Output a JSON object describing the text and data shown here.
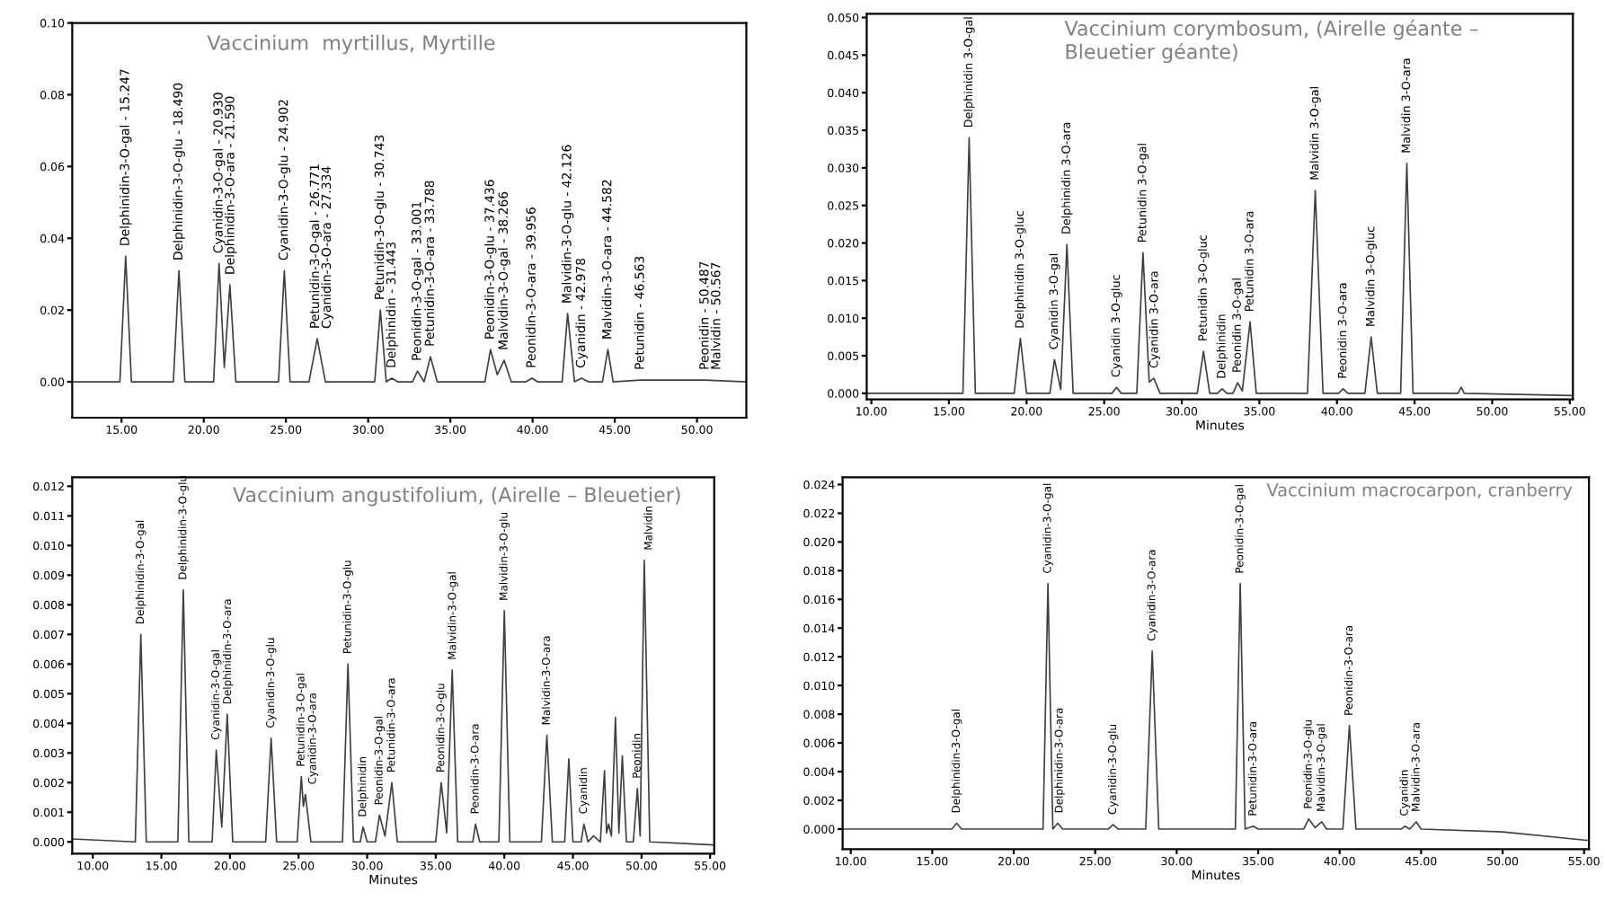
{
  "chart_data": [
    {
      "type": "line",
      "title": "Vaccinium  myrtillus, Myrtille",
      "color": "#404040",
      "x": [
        12,
        14.9,
        15.25,
        15.6,
        18.15,
        18.49,
        18.85,
        20.6,
        20.93,
        21.25,
        21.59,
        21.95,
        24.55,
        24.9,
        25.25,
        26.4,
        26.9,
        27.4,
        30.4,
        30.74,
        31.1,
        31.44,
        31.8,
        32.7,
        33.0,
        33.4,
        33.79,
        34.2,
        37.1,
        37.44,
        37.85,
        38.27,
        38.7,
        39.6,
        39.96,
        40.3,
        41.8,
        42.13,
        42.55,
        42.98,
        43.4,
        44.25,
        44.58,
        44.9,
        46.56,
        50.49,
        53
      ],
      "values": [
        0,
        0,
        0.035,
        0,
        0,
        0.031,
        0,
        0,
        0.033,
        0.004,
        0.027,
        0,
        0,
        0.031,
        0,
        0,
        0.012,
        0,
        0,
        0.02,
        0,
        0.001,
        0,
        0,
        0.003,
        0,
        0.007,
        0,
        0,
        0.009,
        0.002,
        0.006,
        0,
        0,
        0.001,
        0,
        0,
        0.019,
        0,
        0.001,
        0,
        0,
        0.009,
        0,
        0.0005,
        0.0005,
        0
      ],
      "xlim": [
        12,
        53
      ],
      "ylim": [
        -0.01,
        0.1
      ],
      "xticks": [
        {
          "value": 15,
          "label": "15.00"
        },
        {
          "value": 20,
          "label": "20.00"
        },
        {
          "value": 25,
          "label": "25.00"
        },
        {
          "value": 30,
          "label": "30.00"
        },
        {
          "value": 35,
          "label": "35.00"
        },
        {
          "value": 40,
          "label": "40.00"
        },
        {
          "value": 45,
          "label": "45.00"
        },
        {
          "value": 50,
          "label": "50.00"
        }
      ],
      "yticks": [
        {
          "value": 0,
          "label": "0.00"
        },
        {
          "value": 0.02,
          "label": "0.02"
        },
        {
          "value": 0.04,
          "label": "0.04"
        },
        {
          "value": 0.06,
          "label": "0.06"
        },
        {
          "value": 0.08,
          "label": "0.08"
        },
        {
          "value": 0.1,
          "label": "0.10"
        }
      ],
      "annotations": [
        {
          "text": "Delphinidin-3-O-gal - 15.247",
          "x": 15.25,
          "y": 0.035
        },
        {
          "text": "Delphinidin-3-O-glu - 18.490",
          "x": 18.49,
          "y": 0.031
        },
        {
          "text": "Cyanidin-3-O-gal - 20.930",
          "x": 20.93,
          "y": 0.033
        },
        {
          "text": "Delphinidin-3-O-ara - 21.590",
          "x": 21.59,
          "y": 0.027
        },
        {
          "text": "Cyanidin-3-O-glu - 24.902",
          "x": 24.9,
          "y": 0.031
        },
        {
          "text": "Petunidin-3-O-gal - 26.771",
          "x": 26.8,
          "y": 0.012
        },
        {
          "text": "Cyanidin-3-O-ara - 27.334",
          "x": 27.33,
          "y": 0.012
        },
        {
          "text": "Petunidin-3-O-glu - 30.743",
          "x": 30.74,
          "y": 0.02
        },
        {
          "text": "Delphinidin - 31.443",
          "x": 31.44,
          "y": 0.001
        },
        {
          "text": "Peonidin-3-O-gal - 33.001",
          "x": 33.0,
          "y": 0.003
        },
        {
          "text": "Petunidin-3-O-ara - 33.788",
          "x": 33.79,
          "y": 0.007
        },
        {
          "text": "Peonidin-3-O-glu - 37.436",
          "x": 37.44,
          "y": 0.009
        },
        {
          "text": "Malvidin-3-O-gal - 38.266",
          "x": 38.27,
          "y": 0.006
        },
        {
          "text": "Peonidin-3-O-ara - 39.956",
          "x": 39.96,
          "y": 0.001
        },
        {
          "text": "Malvidin-3-O-glu - 42.126",
          "x": 42.13,
          "y": 0.019
        },
        {
          "text": "Cyanidin - 42.978",
          "x": 42.98,
          "y": 0.001
        },
        {
          "text": "Malvidin-3-O-ara - 44.582",
          "x": 44.58,
          "y": 0.009
        },
        {
          "text": "Petunidin - 46.563",
          "x": 46.56,
          "y": 0.0005
        },
        {
          "text": "Peonidin - 50.487",
          "x": 50.49,
          "y": 0.0005
        },
        {
          "text": "Malvidin - 50.567",
          "x": 50.57,
          "y": 0.0005
        }
      ]
    },
    {
      "type": "line",
      "title": "Vaccinium corymbosum, (Airelle géante –\nBleuetier géante)",
      "xlabel": "Minutes",
      "color": "#404040",
      "x": [
        9.7,
        15.9,
        16.3,
        16.7,
        19.2,
        19.6,
        20.0,
        21.5,
        21.8,
        22.2,
        22.6,
        23.0,
        25.5,
        25.8,
        26.1,
        27.1,
        27.5,
        27.9,
        28.2,
        28.6,
        31.0,
        31.4,
        31.8,
        32.3,
        32.6,
        32.9,
        33.3,
        33.6,
        33.9,
        34.4,
        34.8,
        38.1,
        38.6,
        39.1,
        40.1,
        40.4,
        40.7,
        41.8,
        42.2,
        42.6,
        44.1,
        44.5,
        44.9,
        47.8,
        48.0,
        48.2,
        55.2
      ],
      "values": [
        0,
        0,
        0.034,
        0,
        0,
        0.0073,
        0,
        0,
        0.0045,
        0.0005,
        0.0198,
        0,
        0,
        0.0008,
        0,
        0,
        0.0187,
        0.0015,
        0.002,
        0,
        0,
        0.0056,
        0,
        0,
        0.0006,
        0,
        0,
        0.0014,
        0.0003,
        0.0095,
        0,
        0,
        0.027,
        0,
        0,
        0.0006,
        0,
        0,
        0.0075,
        0,
        0,
        0.0306,
        0,
        0,
        0.0008,
        0,
        -0.0003
      ],
      "xlim": [
        9.7,
        55.2
      ],
      "ylim": [
        -0.0008,
        0.0505
      ],
      "xticks": [
        {
          "value": 10,
          "label": "10.00"
        },
        {
          "value": 15,
          "label": "15.00"
        },
        {
          "value": 20,
          "label": "20.00"
        },
        {
          "value": 25,
          "label": "25.00"
        },
        {
          "value": 30,
          "label": "30.00"
        },
        {
          "value": 35,
          "label": "35.00"
        },
        {
          "value": 40,
          "label": "40.00"
        },
        {
          "value": 45,
          "label": "45.00"
        },
        {
          "value": 50,
          "label": "50.00"
        },
        {
          "value": 55,
          "label": "55.00"
        }
      ],
      "yticks": [
        {
          "value": 0,
          "label": "0.000"
        },
        {
          "value": 0.005,
          "label": "0.005"
        },
        {
          "value": 0.01,
          "label": "0.010"
        },
        {
          "value": 0.015,
          "label": "0.015"
        },
        {
          "value": 0.02,
          "label": "0.020"
        },
        {
          "value": 0.025,
          "label": "0.025"
        },
        {
          "value": 0.03,
          "label": "0.030"
        },
        {
          "value": 0.035,
          "label": "0.035"
        },
        {
          "value": 0.04,
          "label": "0.040"
        },
        {
          "value": 0.045,
          "label": "0.045"
        },
        {
          "value": 0.05,
          "label": "0.050"
        }
      ],
      "annotations": [
        {
          "text": "Delphinidin 3-O-gal",
          "x": 16.3,
          "y": 0.034
        },
        {
          "text": "Delphinidin 3-O-gluc",
          "x": 19.6,
          "y": 0.0073
        },
        {
          "text": "Cyanidin 3-O-gal",
          "x": 21.8,
          "y": 0.0045
        },
        {
          "text": "Delphinidin 3-O-ara",
          "x": 22.6,
          "y": 0.0198
        },
        {
          "text": "Cyanidin 3-O-gluc",
          "x": 25.8,
          "y": 0.0008
        },
        {
          "text": "Petunidin 3-O-gal",
          "x": 27.5,
          "y": 0.0187
        },
        {
          "text": "Cyanidin 3-O-ara",
          "x": 28.2,
          "y": 0.002
        },
        {
          "text": "Petunidin 3-O-gluc",
          "x": 31.4,
          "y": 0.0056
        },
        {
          "text": "Delphinidin",
          "x": 32.6,
          "y": 0.0006
        },
        {
          "text": "Peonidin 3-O-gal",
          "x": 33.6,
          "y": 0.0014
        },
        {
          "text": "Petunidin 3-O-ara",
          "x": 34.4,
          "y": 0.0095
        },
        {
          "text": "Malvidin 3-O-gal",
          "x": 38.6,
          "y": 0.027
        },
        {
          "text": "Peonidin 3-O-ara",
          "x": 40.4,
          "y": 0.0006
        },
        {
          "text": "Malvidin 3-O-gluc",
          "x": 42.2,
          "y": 0.0075
        },
        {
          "text": "Malvidin 3-O-ara",
          "x": 44.5,
          "y": 0.0306
        }
      ]
    },
    {
      "type": "line",
      "title": "Vaccinium angustifolium, (Airelle – Bleuetier)",
      "xlabel": "Minutes",
      "color": "#404040",
      "x": [
        8.5,
        13.1,
        13.5,
        13.9,
        16.2,
        16.6,
        17.0,
        18.7,
        19.0,
        19.4,
        19.8,
        20.2,
        22.6,
        23.0,
        23.4,
        24.9,
        25.2,
        25.35,
        25.5,
        25.9,
        28.2,
        28.6,
        29.0,
        29.5,
        29.7,
        30.0,
        30.6,
        30.9,
        31.3,
        31.8,
        32.2,
        35.0,
        35.4,
        35.8,
        36.2,
        36.6,
        37.7,
        37.9,
        38.2,
        39.6,
        40.0,
        40.4,
        42.7,
        43.1,
        43.5,
        44.4,
        44.7,
        45.0,
        45.6,
        45.8,
        46.1,
        46.5,
        47.0,
        47.3,
        47.45,
        47.6,
        47.8,
        48.1,
        48.35,
        48.6,
        48.9,
        49.4,
        49.7,
        49.9,
        50.2,
        50.6,
        55.2
      ],
      "values": [
        0.0001,
        0,
        0.007,
        0,
        0,
        0.0085,
        0,
        0,
        0.0031,
        0.0005,
        0.0043,
        0,
        0,
        0.0035,
        0,
        0,
        0.0022,
        0.0012,
        0.0016,
        0,
        0,
        0.006,
        0,
        0,
        0.0005,
        0,
        0,
        0.0009,
        0.0002,
        0.002,
        0,
        0,
        0.002,
        0.0003,
        0.0058,
        0,
        0,
        0.0006,
        0,
        0,
        0.0078,
        0,
        0,
        0.0036,
        0,
        0,
        0.0028,
        0,
        0,
        0.0006,
        0,
        0.0002,
        0,
        0.0024,
        0.0003,
        0.0006,
        0.0002,
        0.0042,
        0.0003,
        0.0029,
        0,
        0,
        0.0018,
        0.0002,
        0.0095,
        0,
        -0.0001
      ],
      "xlim": [
        8.5,
        55.3
      ],
      "ylim": [
        -0.0004,
        0.0123
      ],
      "xticks": [
        {
          "value": 10,
          "label": "10.00"
        },
        {
          "value": 15,
          "label": "15.00"
        },
        {
          "value": 20,
          "label": "20.00"
        },
        {
          "value": 25,
          "label": "25.00"
        },
        {
          "value": 30,
          "label": "30.00"
        },
        {
          "value": 35,
          "label": "35.00"
        },
        {
          "value": 40,
          "label": "40.00"
        },
        {
          "value": 45,
          "label": "45.00"
        },
        {
          "value": 50,
          "label": "50.00"
        },
        {
          "value": 55,
          "label": "55.00"
        }
      ],
      "yticks": [
        {
          "value": 0,
          "label": "0.000"
        },
        {
          "value": 0.001,
          "label": "0.001"
        },
        {
          "value": 0.002,
          "label": "0.002"
        },
        {
          "value": 0.003,
          "label": "0.003"
        },
        {
          "value": 0.004,
          "label": "0.004"
        },
        {
          "value": 0.005,
          "label": "0.005"
        },
        {
          "value": 0.006,
          "label": "0.006"
        },
        {
          "value": 0.007,
          "label": "0.007"
        },
        {
          "value": 0.008,
          "label": "0.008"
        },
        {
          "value": 0.009,
          "label": "0.009"
        },
        {
          "value": 0.01,
          "label": "0.010"
        },
        {
          "value": 0.011,
          "label": "0.011"
        },
        {
          "value": 0.012,
          "label": "0.012"
        }
      ],
      "annotations": [
        {
          "text": "Delphinidin-3-O-gal",
          "x": 13.5,
          "y": 0.007
        },
        {
          "text": "Delphinidin-3-O-glu",
          "x": 16.6,
          "y": 0.0085
        },
        {
          "text": "Cyanidin-3-O-gal",
          "x": 19.0,
          "y": 0.0031
        },
        {
          "text": "Delphinidin-3-O-ara",
          "x": 19.8,
          "y": 0.0043
        },
        {
          "text": "Cyanidin-3-O-glu",
          "x": 23.0,
          "y": 0.0035
        },
        {
          "text": "Petunidin-3-O-gal",
          "x": 25.2,
          "y": 0.0022
        },
        {
          "text": "Cyanidin-3-O-ara",
          "x": 25.5,
          "y": 0.0016
        },
        {
          "text": "Petunidin-3-O-glu",
          "x": 28.6,
          "y": 0.006
        },
        {
          "text": "Delphinidin",
          "x": 29.7,
          "y": 0.0005
        },
        {
          "text": "Peonidin-3-O-gal",
          "x": 30.9,
          "y": 0.0009
        },
        {
          "text": "Petunidin-3-O-ara",
          "x": 31.8,
          "y": 0.002
        },
        {
          "text": "Peonidin-3-O-glu",
          "x": 35.4,
          "y": 0.002
        },
        {
          "text": "Malvidin-3-O-gal",
          "x": 36.2,
          "y": 0.0058
        },
        {
          "text": "Peonidin-3-O-ara",
          "x": 37.9,
          "y": 0.0006
        },
        {
          "text": "Malvidin-3-O-glu",
          "x": 40.0,
          "y": 0.0078
        },
        {
          "text": "Malvidin-3-O-ara",
          "x": 43.1,
          "y": 0.0036
        },
        {
          "text": "Cyanidin",
          "x": 45.8,
          "y": 0.0006
        },
        {
          "text": "Peonidin",
          "x": 49.7,
          "y": 0.0018
        },
        {
          "text": "Malvidin",
          "x": 50.2,
          "y": 0.0095
        }
      ]
    },
    {
      "type": "line",
      "title": "Vaccinium macrocarpon, cranberry",
      "xlabel": "Minutes",
      "color": "#404040",
      "x": [
        9.5,
        16.2,
        16.5,
        16.8,
        21.8,
        22.1,
        22.4,
        22.7,
        23.0,
        25.8,
        26.1,
        26.4,
        28.1,
        28.5,
        28.9,
        33.6,
        33.9,
        34.2,
        34.7,
        35.0,
        37.8,
        38.1,
        38.5,
        38.9,
        39.2,
        40.2,
        40.6,
        41.0,
        43.8,
        44.0,
        44.3,
        44.7,
        45.0,
        50.0,
        55.3
      ],
      "values": [
        0,
        0,
        0.0004,
        0,
        0,
        0.0171,
        0,
        0.0004,
        0,
        0,
        0.0003,
        0,
        0,
        0.0124,
        0,
        0,
        0.0171,
        0,
        0.0002,
        0,
        0,
        0.0007,
        0.0001,
        0.0005,
        0,
        0,
        0.0072,
        0,
        0,
        0.0002,
        0,
        0.0005,
        0,
        -0.0002,
        -0.0008
      ],
      "xlim": [
        9.5,
        55.3
      ],
      "ylim": [
        -0.0014,
        0.0245
      ],
      "xticks": [
        {
          "value": 10,
          "label": "10.00"
        },
        {
          "value": 15,
          "label": "15.00"
        },
        {
          "value": 20,
          "label": "20.00"
        },
        {
          "value": 25,
          "label": "25.00"
        },
        {
          "value": 30,
          "label": "30.00"
        },
        {
          "value": 35,
          "label": "35.00"
        },
        {
          "value": 40,
          "label": "40.00"
        },
        {
          "value": 45,
          "label": "45.00"
        },
        {
          "value": 50,
          "label": "50.00"
        },
        {
          "value": 55,
          "label": "55.00"
        }
      ],
      "yticks": [
        {
          "value": 0,
          "label": "0.000"
        },
        {
          "value": 0.002,
          "label": "0.002"
        },
        {
          "value": 0.004,
          "label": "0.004"
        },
        {
          "value": 0.006,
          "label": "0.006"
        },
        {
          "value": 0.008,
          "label": "0.008"
        },
        {
          "value": 0.01,
          "label": "0.010"
        },
        {
          "value": 0.012,
          "label": "0.012"
        },
        {
          "value": 0.014,
          "label": "0.014"
        },
        {
          "value": 0.016,
          "label": "0.016"
        },
        {
          "value": 0.018,
          "label": "0.018"
        },
        {
          "value": 0.02,
          "label": "0.020"
        },
        {
          "value": 0.022,
          "label": "0.022"
        },
        {
          "value": 0.024,
          "label": "0.024"
        }
      ],
      "annotations": [
        {
          "text": "Delphinidin-3-O-gal",
          "x": 16.5,
          "y": 0.0004
        },
        {
          "text": "Cyanidin-3-O-gal",
          "x": 22.1,
          "y": 0.0171
        },
        {
          "text": "Delphinidin-3-O-ara",
          "x": 22.7,
          "y": 0.0004
        },
        {
          "text": "Cyanidin-3-O-glu",
          "x": 26.1,
          "y": 0.0003
        },
        {
          "text": "Cyanidin-3-O-ara",
          "x": 28.5,
          "y": 0.0124
        },
        {
          "text": "Peonidin-3-O-gal",
          "x": 33.9,
          "y": 0.0171
        },
        {
          "text": "Petunidin-3-O-ara",
          "x": 34.7,
          "y": 0.0002
        },
        {
          "text": "Peonidin-3-O-glu",
          "x": 38.1,
          "y": 0.0007
        },
        {
          "text": "Malvidin-3-O-gal",
          "x": 38.9,
          "y": 0.0005
        },
        {
          "text": "Peonidin-3-O-ara",
          "x": 40.6,
          "y": 0.0072
        },
        {
          "text": "Cyanidin",
          "x": 44.0,
          "y": 0.0002
        },
        {
          "text": "Malvidin-3-O-ara",
          "x": 44.7,
          "y": 0.0005
        }
      ]
    }
  ]
}
